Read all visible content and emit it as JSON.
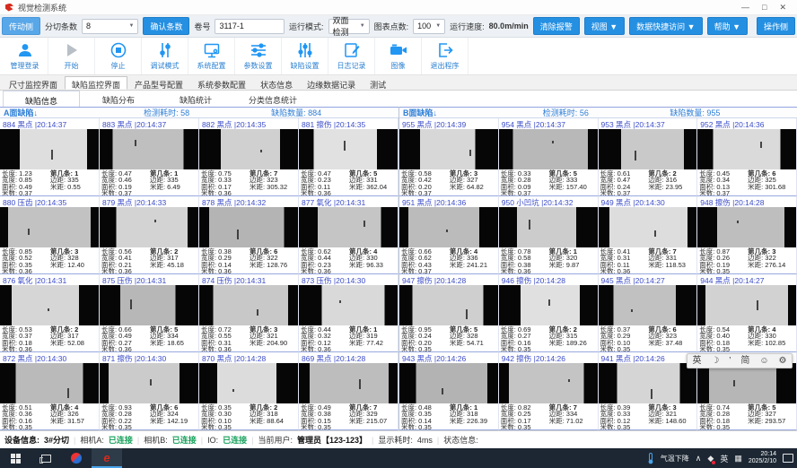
{
  "colors": {
    "accent": "#2196f3",
    "header_blue": "#3b4cc8",
    "panel_blue": "#2e7fd6",
    "ok_green": "#16a05a",
    "taskbar": "#1c2733"
  },
  "window": {
    "title": "视觉检测系统",
    "minimize": "—",
    "maximize": "□",
    "close": "✕"
  },
  "toolbar1": {
    "left_side_button": "传动侧",
    "strip_count_label": "分切条数",
    "strip_count_value": "8",
    "confirm_button": "确认条数",
    "roll_label": "卷号",
    "roll_value": "3117-1",
    "run_mode_label": "运行模式:",
    "run_mode_value": "双面检测",
    "chart_points_label": "图表点数:",
    "chart_points_value": "100",
    "speed_label": "运行速度:",
    "speed_value": "80.0m/min",
    "clear_alarm_button": "清除报警",
    "view_button": "视图 ▼",
    "data_access_button": "数据快捷访问 ▼",
    "help_button": "帮助 ▼",
    "right_side_button": "操作侧"
  },
  "toolbar2": {
    "items": [
      {
        "label": "管理登录",
        "icon": "user"
      },
      {
        "label": "开始",
        "icon": "play"
      },
      {
        "label": "停止",
        "icon": "stop"
      },
      {
        "label": "调试模式",
        "icon": "debug"
      },
      {
        "label": "系统配置",
        "icon": "monitor"
      },
      {
        "label": "参数设置",
        "icon": "sliders-h"
      },
      {
        "label": "缺陷设置",
        "icon": "sliders-v"
      },
      {
        "label": "日志记录",
        "icon": "log"
      },
      {
        "label": "图像",
        "icon": "camera"
      },
      {
        "label": "退出程序",
        "icon": "exit"
      }
    ]
  },
  "main_tabs": {
    "selected": 1,
    "items": [
      "尺寸监控界面",
      "缺陷监控界面",
      "产品型号配置",
      "系统参数配置",
      "状态信息",
      "边缘数据记录",
      "测试"
    ]
  },
  "sub_tabs": {
    "selected": 0,
    "items": [
      "缺陷信息",
      "缺陷分布",
      "缺陷统计",
      "分类信息统计"
    ]
  },
  "cell_labels": {
    "length": "长度:",
    "width": "宽度:",
    "area": "面积:",
    "meters": "米数:",
    "strip": "第几条:",
    "margin": "边距:",
    "distance": "米距:"
  },
  "panels": [
    {
      "title": "A面缺陷↓",
      "elapsed_label": "检测耗时:",
      "elapsed": "58",
      "count_label": "缺陷数量:",
      "count": "884",
      "cells": [
        {
          "id": "884",
          "type": "黑点",
          "time": "20:14:37",
          "length": "1.23",
          "width": "0.85",
          "area": "0.49",
          "meters": "0.37",
          "strip": "1",
          "margin": "335",
          "distance": "0.55"
        },
        {
          "id": "883",
          "type": "黑点",
          "time": "20:14:37",
          "length": "0.47",
          "width": "0.46",
          "area": "0.19",
          "meters": "0.37",
          "strip": "1",
          "margin": "335",
          "distance": "6.49"
        },
        {
          "id": "882",
          "type": "黑点",
          "time": "20:14:35",
          "length": "0.75",
          "width": "0.33",
          "area": "0.17",
          "meters": "0.36",
          "strip": "7",
          "margin": "323",
          "distance": "305.32"
        },
        {
          "id": "881",
          "type": "擦伤",
          "time": "20:14:35",
          "length": "0.47",
          "width": "0.23",
          "area": "0.11",
          "meters": "0.36",
          "strip": "5",
          "margin": "331",
          "distance": "362.04"
        },
        {
          "id": "880",
          "type": "压齿",
          "time": "20:14:35",
          "length": "0.85",
          "width": "0.52",
          "area": "0.35",
          "meters": "0.36",
          "strip": "3",
          "margin": "328",
          "distance": "12.40"
        },
        {
          "id": "879",
          "type": "黑点",
          "time": "20:14:33",
          "length": "0.56",
          "width": "0.41",
          "area": "0.21",
          "meters": "0.36",
          "strip": "2",
          "margin": "317",
          "distance": "45.18"
        },
        {
          "id": "878",
          "type": "黑点",
          "time": "20:14:32",
          "length": "0.38",
          "width": "0.29",
          "area": "0.14",
          "meters": "0.36",
          "strip": "6",
          "margin": "322",
          "distance": "128.76"
        },
        {
          "id": "877",
          "type": "氧化",
          "time": "20:14:31",
          "length": "0.62",
          "width": "0.44",
          "area": "0.23",
          "meters": "0.36",
          "strip": "4",
          "margin": "330",
          "distance": "96.33"
        },
        {
          "id": "876",
          "type": "氧化",
          "time": "20:14:31",
          "length": "0.53",
          "width": "0.37",
          "area": "0.18",
          "meters": "0.36",
          "strip": "2",
          "margin": "317",
          "distance": "52.08"
        },
        {
          "id": "875",
          "type": "压伤",
          "time": "20:14:31",
          "length": "0.66",
          "width": "0.49",
          "area": "0.27",
          "meters": "0.36",
          "strip": "5",
          "margin": "334",
          "distance": "18.65"
        },
        {
          "id": "874",
          "type": "压伤",
          "time": "20:14:31",
          "length": "0.72",
          "width": "0.55",
          "area": "0.31",
          "meters": "0.36",
          "strip": "3",
          "margin": "321",
          "distance": "204.90"
        },
        {
          "id": "873",
          "type": "压伤",
          "time": "20:14:30",
          "length": "0.44",
          "width": "0.32",
          "area": "0.12",
          "meters": "0.36",
          "strip": "1",
          "margin": "319",
          "distance": "77.42"
        },
        {
          "id": "872",
          "type": "黑点",
          "time": "20:14:30",
          "length": "0.51",
          "width": "0.36",
          "area": "0.16",
          "meters": "0.35",
          "strip": "4",
          "margin": "326",
          "distance": "31.57"
        },
        {
          "id": "871",
          "type": "擦伤",
          "time": "20:14:30",
          "length": "0.93",
          "width": "0.28",
          "area": "0.22",
          "meters": "0.35",
          "strip": "6",
          "margin": "324",
          "distance": "142.19"
        },
        {
          "id": "870",
          "type": "黑点",
          "time": "20:14:28",
          "length": "0.35",
          "width": "0.30",
          "area": "0.10",
          "meters": "0.35",
          "strip": "2",
          "margin": "318",
          "distance": "88.64"
        },
        {
          "id": "869",
          "type": "黑点",
          "time": "20:14:28",
          "length": "0.49",
          "width": "0.38",
          "area": "0.15",
          "meters": "0.35",
          "strip": "7",
          "margin": "329",
          "distance": "215.07"
        }
      ]
    },
    {
      "title": "B面缺陷↓",
      "elapsed_label": "检测耗时:",
      "elapsed": "56",
      "count_label": "缺陷数量:",
      "count": "955",
      "cells": [
        {
          "id": "955",
          "type": "黑点",
          "time": "20:14:39",
          "length": "0.58",
          "width": "0.42",
          "area": "0.20",
          "meters": "0.37",
          "strip": "3",
          "margin": "327",
          "distance": "64.82"
        },
        {
          "id": "954",
          "type": "黑点",
          "time": "20:14:37",
          "length": "0.33",
          "width": "0.28",
          "area": "0.09",
          "meters": "0.37",
          "strip": "5",
          "margin": "333",
          "distance": "157.40"
        },
        {
          "id": "953",
          "type": "黑点",
          "time": "20:14:37",
          "length": "0.61",
          "width": "0.47",
          "area": "0.24",
          "meters": "0.37",
          "strip": "2",
          "margin": "316",
          "distance": "23.95"
        },
        {
          "id": "952",
          "type": "黑点",
          "time": "20:14:36",
          "length": "0.45",
          "width": "0.34",
          "area": "0.13",
          "meters": "0.37",
          "strip": "6",
          "margin": "325",
          "distance": "301.68"
        },
        {
          "id": "951",
          "type": "黑点",
          "time": "20:14:36",
          "length": "0.66",
          "width": "0.62",
          "area": "0.43",
          "meters": "0.37",
          "strip": "4",
          "margin": "336",
          "distance": "241.21"
        },
        {
          "id": "950",
          "type": "小凹坑",
          "time": "20:14:32",
          "length": "0.78",
          "width": "0.58",
          "area": "0.38",
          "meters": "0.36",
          "strip": "1",
          "margin": "320",
          "distance": "9.87"
        },
        {
          "id": "949",
          "type": "黑点",
          "time": "20:14:30",
          "length": "0.41",
          "width": "0.31",
          "area": "0.11",
          "meters": "0.36",
          "strip": "7",
          "margin": "331",
          "distance": "118.53"
        },
        {
          "id": "948",
          "type": "擦伤",
          "time": "20:14:28",
          "length": "0.87",
          "width": "0.26",
          "area": "0.19",
          "meters": "0.35",
          "strip": "3",
          "margin": "322",
          "distance": "276.14"
        },
        {
          "id": "947",
          "type": "擦伤",
          "time": "20:14:28",
          "length": "0.95",
          "width": "0.24",
          "area": "0.20",
          "meters": "0.35",
          "strip": "5",
          "margin": "328",
          "distance": "54.71"
        },
        {
          "id": "946",
          "type": "擦伤",
          "time": "20:14:28",
          "length": "0.69",
          "width": "0.27",
          "area": "0.16",
          "meters": "0.35",
          "strip": "2",
          "margin": "315",
          "distance": "189.26"
        },
        {
          "id": "945",
          "type": "黑点",
          "time": "20:14:27",
          "length": "0.37",
          "width": "0.29",
          "area": "0.10",
          "meters": "0.35",
          "strip": "6",
          "margin": "323",
          "distance": "37.48"
        },
        {
          "id": "944",
          "type": "黑点",
          "time": "20:14:27",
          "length": "0.54",
          "width": "0.40",
          "area": "0.18",
          "meters": "0.35",
          "strip": "4",
          "margin": "330",
          "distance": "102.85"
        },
        {
          "id": "943",
          "type": "黑点",
          "time": "20:14:26",
          "length": "0.48",
          "width": "0.35",
          "area": "0.14",
          "meters": "0.35",
          "strip": "1",
          "margin": "318",
          "distance": "226.39"
        },
        {
          "id": "942",
          "type": "擦伤",
          "time": "20:14:26",
          "length": "0.82",
          "width": "0.25",
          "area": "0.17",
          "meters": "0.35",
          "strip": "7",
          "margin": "334",
          "distance": "71.02"
        },
        {
          "id": "941",
          "type": "黑点",
          "time": "20:14:26",
          "length": "0.39",
          "width": "0.33",
          "area": "0.12",
          "meters": "0.35",
          "strip": "3",
          "margin": "321",
          "distance": "148.60"
        },
        {
          "id": "940",
          "type": "擦伤",
          "time": "20:14:26",
          "length": "0.74",
          "width": "0.28",
          "area": "0.18",
          "meters": "0.35",
          "strip": "5",
          "margin": "327",
          "distance": "293.57"
        }
      ]
    }
  ],
  "status_bar": {
    "device_label": "设备信息:",
    "device_value": "3#分切",
    "cam_a_label": "相机A:",
    "cam_a_value": "已连接",
    "cam_b_label": "相机B:",
    "cam_b_value": "已连接",
    "io_label": "IO:",
    "io_value": "已连接",
    "user_label": "当前用户:",
    "user_value": "管理员【123-123】",
    "elapsed_label": "显示耗时:",
    "elapsed_value": "4ms",
    "state_label": "状态信息:"
  },
  "taskbar": {
    "weather_text": "气温下降",
    "tray_expand": "∧",
    "lang_indicator": "英",
    "time": "20:14",
    "date": "2025/2/10"
  },
  "ime_bar": {
    "items": [
      {
        "name": "lang",
        "text": "英"
      },
      {
        "name": "night-mode",
        "text": "☽"
      },
      {
        "name": "punctuation",
        "text": "’"
      },
      {
        "name": "simplified",
        "text": "简"
      },
      {
        "name": "emoji",
        "text": "☺"
      },
      {
        "name": "settings",
        "text": "⚙"
      }
    ]
  }
}
